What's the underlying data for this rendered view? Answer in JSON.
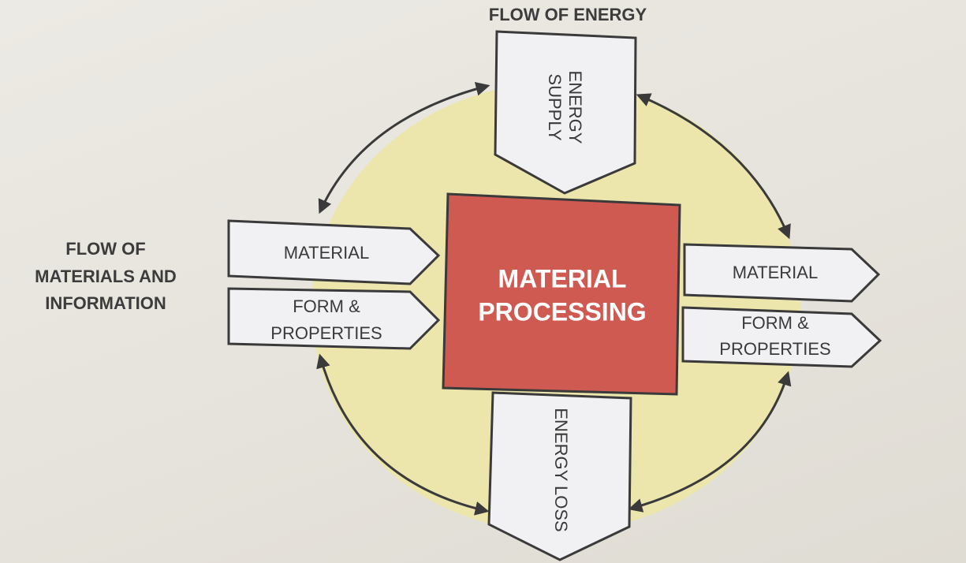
{
  "labels": {
    "flow_energy": "FLOW OF ENERGY",
    "flow_materials_line1": "FLOW OF",
    "flow_materials_line2": "MATERIALS AND",
    "flow_materials_line3": "INFORMATION"
  },
  "core": {
    "line1": "MATERIAL",
    "line2": "PROCESSING",
    "color": "#cf5a52"
  },
  "inputs": {
    "material": "MATERIAL",
    "form_line1": "FORM &",
    "form_line2": "PROPERTIES"
  },
  "outputs": {
    "material": "MATERIAL",
    "form_line1": "FORM &",
    "form_line2": "PROPERTIES"
  },
  "energy_supply": {
    "line1": "ENERGY",
    "line2": "SUPPLY"
  },
  "energy_loss": {
    "label": "ENERGY LOSS"
  },
  "colors": {
    "circle": "#ece6ad",
    "arrow_fill": "#f1f1f3",
    "stroke": "#3a3a3a"
  }
}
